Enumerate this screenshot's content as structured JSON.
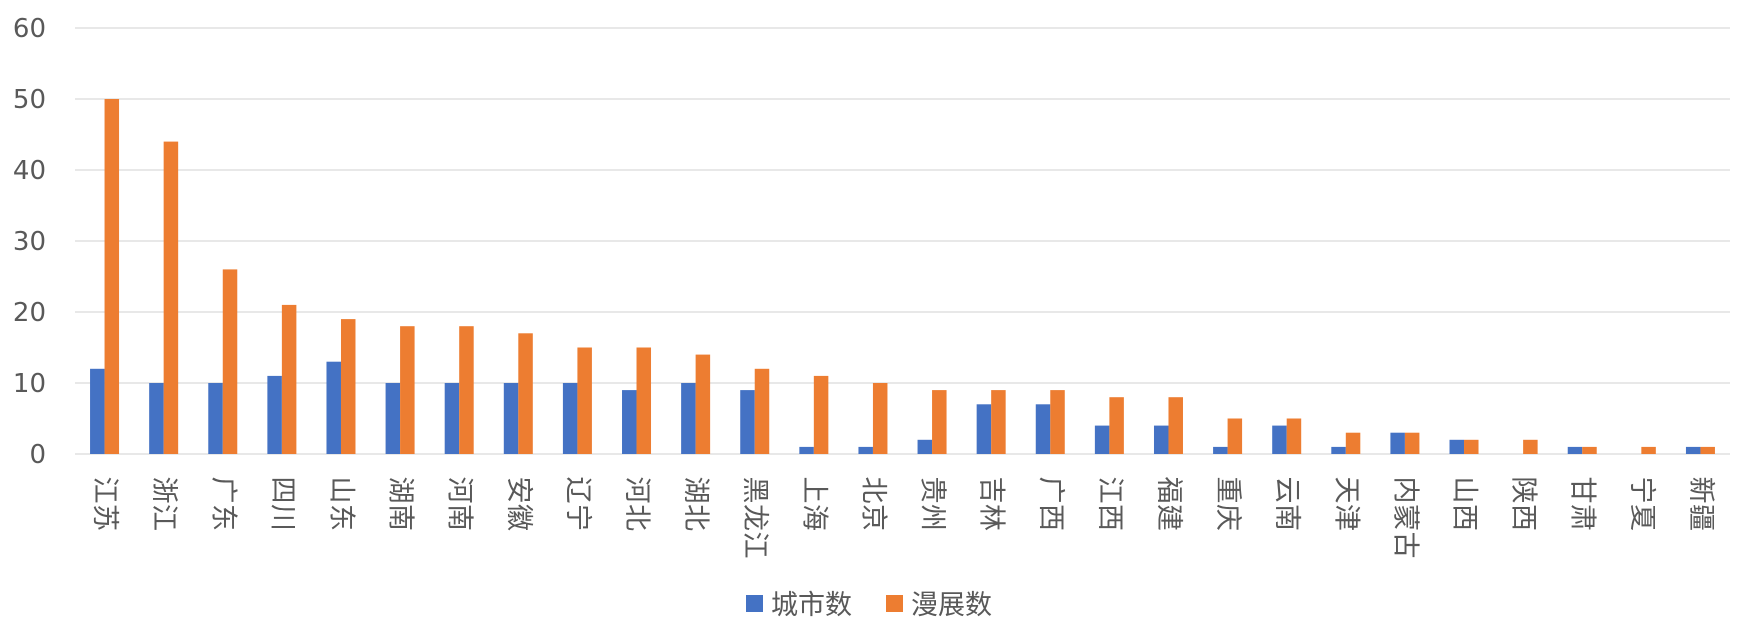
{
  "chart_data": {
    "type": "bar",
    "categories": [
      "江苏",
      "浙江",
      "广东",
      "四川",
      "山东",
      "湖南",
      "河南",
      "安徽",
      "辽宁",
      "河北",
      "湖北",
      "黑龙江",
      "上海",
      "北京",
      "贵州",
      "吉林",
      "广西",
      "江西",
      "福建",
      "重庆",
      "云南",
      "天津",
      "内蒙古",
      "山西",
      "陕西",
      "甘肃",
      "宁夏",
      "新疆"
    ],
    "series": [
      {
        "name": "城市数",
        "color": "#4472c4",
        "values": [
          12,
          10,
          10,
          11,
          13,
          10,
          10,
          10,
          10,
          9,
          10,
          9,
          1,
          1,
          2,
          7,
          7,
          4,
          4,
          1,
          4,
          1,
          3,
          2,
          0,
          1,
          0,
          1
        ]
      },
      {
        "name": "漫展数",
        "color": "#ed7d31",
        "values": [
          50,
          44,
          26,
          21,
          19,
          18,
          18,
          17,
          15,
          15,
          14,
          12,
          11,
          10,
          9,
          9,
          9,
          8,
          8,
          5,
          5,
          3,
          3,
          2,
          2,
          1,
          1,
          1
        ]
      }
    ],
    "ylim": [
      0,
      60
    ],
    "yticks": [
      0,
      10,
      20,
      30,
      40,
      50,
      60
    ],
    "grid": true,
    "legend_position": "bottom"
  }
}
